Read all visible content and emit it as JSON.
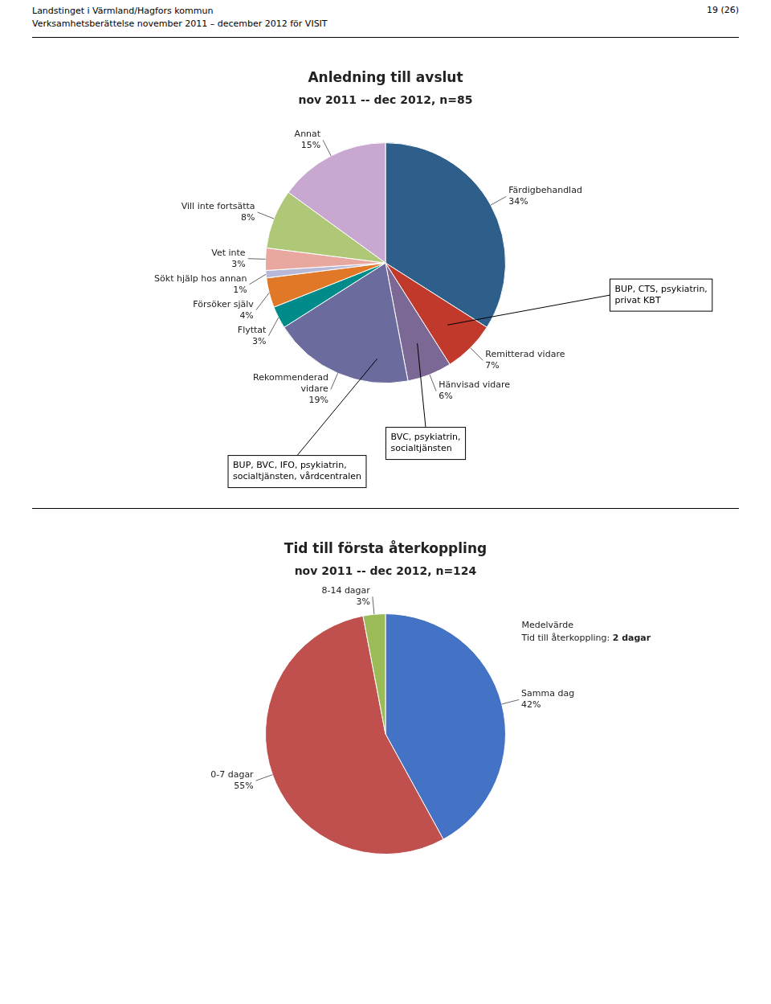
{
  "header": {
    "left": [
      "Landstinget i Värmland/Hagfors kommun",
      "Verksamhetsberättelse november 2011 – december 2012 för VISIT"
    ],
    "right": "19 (26)"
  },
  "chart_data": [
    {
      "type": "pie",
      "title": "Anledning till avslut",
      "subtitle": "nov 2011 -- dec 2012, n=85",
      "categories": [
        "Färdigbehandlad",
        "Remitterad vidare",
        "Hänvisad vidare",
        "Rekommenderad\nvidare",
        "Flyttat",
        "Försöker själv",
        "Sökt hjälp hos annan",
        "Vet inte",
        "Vill inte fortsätta",
        "Annat"
      ],
      "values": [
        34,
        7,
        6,
        19,
        3,
        4,
        1,
        3,
        8,
        15
      ],
      "value_labels": [
        "34%",
        "7%",
        "6%",
        "19%",
        "3%",
        "4%",
        "1%",
        "3%",
        "8%",
        "15%"
      ],
      "data_labels": true,
      "colors": [
        "#2e5f8a",
        "#c0392b",
        "#7b6894",
        "#6b6b9e",
        "#008b8b",
        "#e07828",
        "#b8b8d8",
        "#e8a8a0",
        "#aec878",
        "#c8a8d0"
      ],
      "annotations": [
        {
          "text": "BUP, CTS, psykiatrin,\nprivat KBT",
          "category": "Remitterad vidare"
        },
        {
          "text": "BVC, psykiatrin,\nsocialtjänsten",
          "category": "Hänvisad vidare"
        },
        {
          "text": "BUP, BVC, IFO, psykiatrin,\nsocialtjänsten, vårdcentralen",
          "category": "Rekommenderad\nvidare"
        }
      ]
    },
    {
      "type": "pie",
      "title": "Tid till första återkoppling",
      "subtitle": "nov 2011 -- dec 2012, n=124",
      "categories": [
        "Samma dag",
        "0-7 dagar",
        "8-14 dagar"
      ],
      "values": [
        42,
        55,
        3
      ],
      "value_labels": [
        "42%",
        "55%",
        "3%"
      ],
      "data_labels": true,
      "colors": [
        "#4472c4",
        "#c0504d",
        "#9bbb59"
      ],
      "annotations": [
        {
          "text": "Medelvärde"
        },
        {
          "text": "Tid till återkoppling: ",
          "bold_text": "2 dagar"
        }
      ]
    }
  ]
}
